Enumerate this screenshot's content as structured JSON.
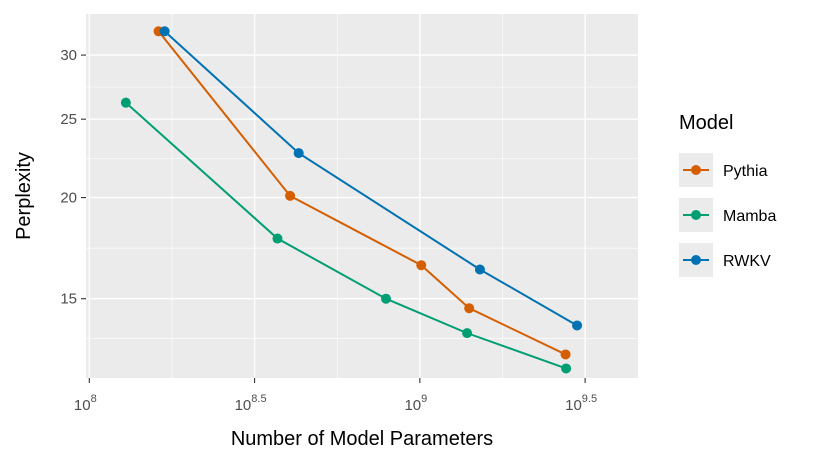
{
  "chart_data": {
    "type": "line",
    "xlabel": "Number of Model Parameters",
    "ylabel": "Perplexity",
    "x_scale": "log10",
    "y_scale": "log",
    "xlim": [
      97723722,
      4570881896
    ],
    "ylim": [
      11.97,
      33.72
    ],
    "x_ticks": [
      {
        "value": 100000000,
        "base": "10",
        "exp": "8"
      },
      {
        "value": 316227766,
        "base": "10",
        "exp": "8.5"
      },
      {
        "value": 1000000000,
        "base": "10",
        "exp": "9"
      },
      {
        "value": 3162277660,
        "base": "10",
        "exp": "9.5"
      }
    ],
    "y_ticks": [
      15,
      20,
      25,
      30
    ],
    "grid": true,
    "legend": {
      "title": "Model",
      "position": "right"
    },
    "series": [
      {
        "name": "Pythia",
        "color": "#D55E00",
        "points": [
          {
            "x": 162000000,
            "y": 32.1
          },
          {
            "x": 405000000,
            "y": 20.1
          },
          {
            "x": 1010000000,
            "y": 16.5
          },
          {
            "x": 1410000000,
            "y": 14.6
          },
          {
            "x": 2760000000,
            "y": 12.8
          }
        ]
      },
      {
        "name": "Mamba",
        "color": "#009E73",
        "points": [
          {
            "x": 129000000,
            "y": 26.2
          },
          {
            "x": 371000000,
            "y": 17.8
          },
          {
            "x": 790000000,
            "y": 15.0
          },
          {
            "x": 1390000000,
            "y": 13.6
          },
          {
            "x": 2770000000,
            "y": 12.3
          }
        ]
      },
      {
        "name": "RWKV",
        "color": "#0072B2",
        "points": [
          {
            "x": 169000000,
            "y": 32.1
          },
          {
            "x": 430000000,
            "y": 22.7
          },
          {
            "x": 1520000000,
            "y": 16.3
          },
          {
            "x": 2990000000,
            "y": 13.9
          }
        ]
      }
    ]
  }
}
